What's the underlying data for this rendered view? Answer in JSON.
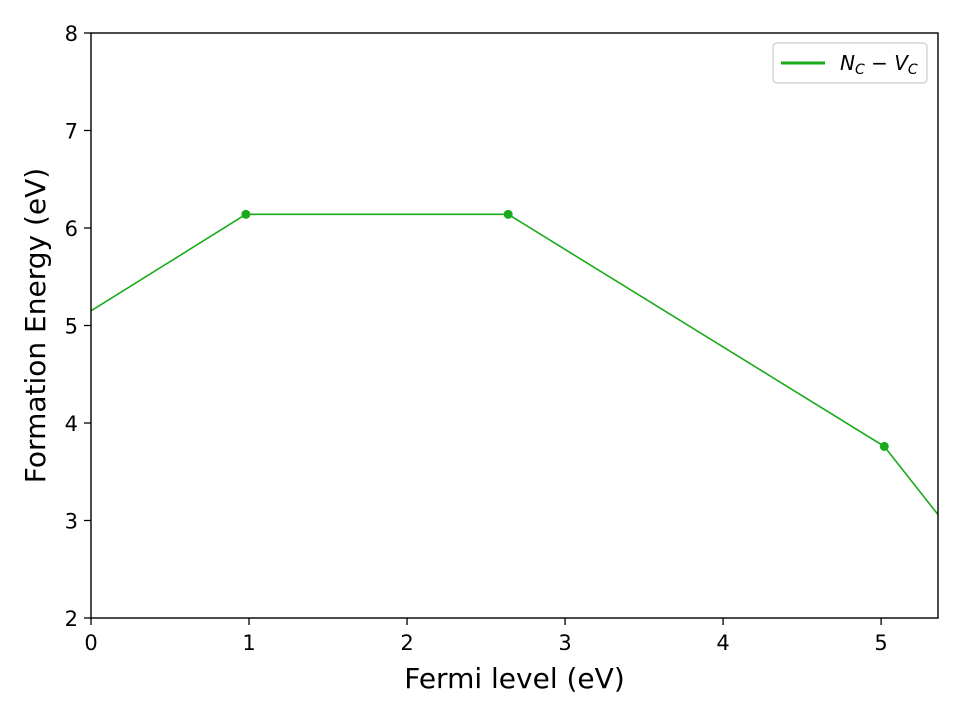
{
  "chart_data": {
    "type": "line",
    "xlabel": "Fermi level (eV)",
    "ylabel": "Formation Energy (eV)",
    "xlim": [
      0,
      5.36
    ],
    "ylim": [
      2,
      8
    ],
    "x_ticks": [
      "0",
      "1",
      "2",
      "3",
      "4",
      "5"
    ],
    "y_ticks": [
      "2",
      "3",
      "4",
      "5",
      "6",
      "7",
      "8"
    ],
    "grid": false,
    "legend_position": "top-right",
    "series": [
      {
        "name": "N_C − V_C",
        "legend_main_1": "N",
        "legend_sub_1": "C",
        "legend_op": " − ",
        "legend_main_2": "V",
        "legend_sub_2": "C",
        "color": "#1aab1a",
        "x": [
          0,
          0.98,
          2.64,
          5.02,
          5.36
        ],
        "y": [
          5.15,
          6.14,
          6.14,
          3.76,
          3.06
        ],
        "transition_points": [
          {
            "x": 0.98,
            "y": 6.14
          },
          {
            "x": 2.64,
            "y": 6.14
          },
          {
            "x": 5.02,
            "y": 3.76
          }
        ]
      }
    ]
  }
}
